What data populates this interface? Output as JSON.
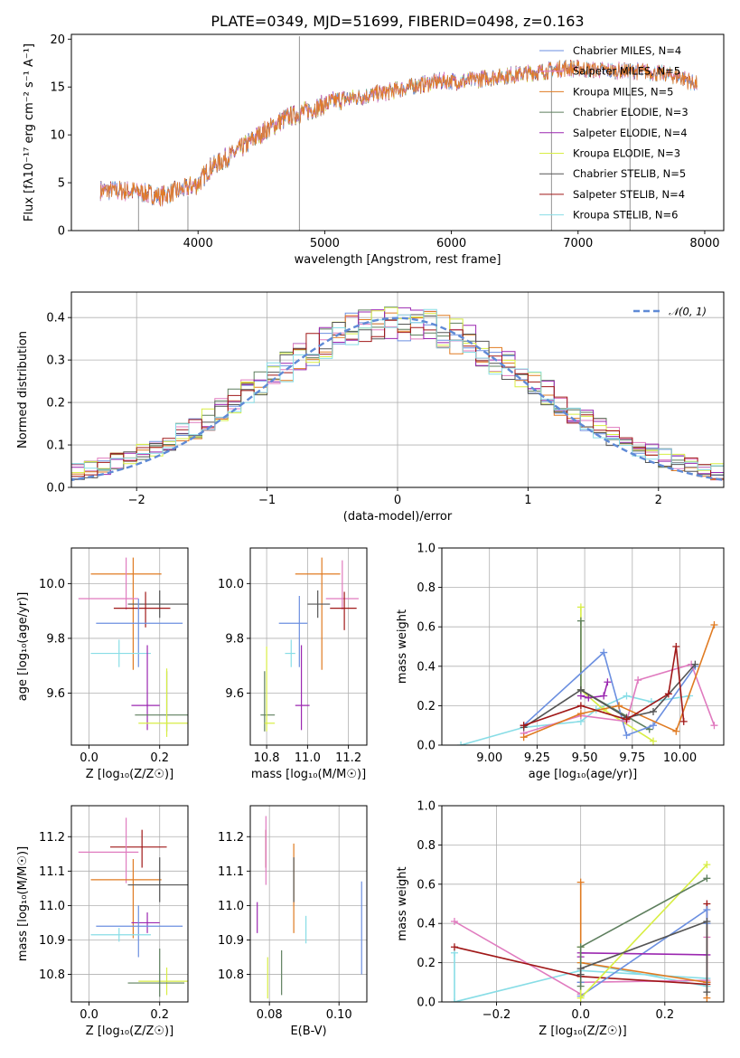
{
  "title": "PLATE=0349, MJD=51699, FIBERID=0498, z=0.163",
  "colors": {
    "Chabrier MILES": "#6b8fe0",
    "Salpeter MILES": "#e07bbf",
    "Kroupa MILES": "#e07b22",
    "Chabrier ELODIE": "#5e7f5e",
    "Salpeter ELODIE": "#9b27b0",
    "Kroupa ELODIE": "#d8ee44",
    "Chabrier STELIB": "#555555",
    "Salpeter STELIB": "#a01818",
    "Kroupa STELIB": "#88dde6"
  },
  "chart_data": [
    {
      "id": "spectrum",
      "type": "line",
      "xlabel": "wavelength [Angstrom, rest frame]",
      "ylabel": "Flux [fλ10⁻¹⁷ erg cm⁻² s⁻¹ A⁻¹]",
      "xlim": [
        3000,
        8150
      ],
      "ylim": [
        0,
        20.5
      ],
      "xticks": [
        4000,
        5000,
        6000,
        7000,
        8000
      ],
      "yticks": [
        0,
        5,
        10,
        15,
        20
      ],
      "grid": false,
      "legend_position": "right",
      "continuum": [
        [
          3230,
          4.2
        ],
        [
          3500,
          4.1
        ],
        [
          3700,
          3.6
        ],
        [
          3900,
          4.4
        ],
        [
          4000,
          4.9
        ],
        [
          4100,
          6.6
        ],
        [
          4300,
          8.2
        ],
        [
          4500,
          10.2
        ],
        [
          4700,
          11.8
        ],
        [
          4900,
          12.7
        ],
        [
          5100,
          13.6
        ],
        [
          5300,
          14.0
        ],
        [
          5500,
          14.5
        ],
        [
          5700,
          15.1
        ],
        [
          5900,
          15.6
        ],
        [
          6100,
          15.6
        ],
        [
          6300,
          16.0
        ],
        [
          6500,
          16.3
        ],
        [
          6700,
          16.6
        ],
        [
          6900,
          17.0
        ],
        [
          7100,
          16.8
        ],
        [
          7300,
          16.7
        ],
        [
          7450,
          16.7
        ],
        [
          7600,
          16.5
        ],
        [
          7700,
          16.3
        ],
        [
          7800,
          16.1
        ],
        [
          7900,
          15.5
        ],
        [
          7940,
          15.3
        ]
      ],
      "features": [
        {
          "x": 4800,
          "ymin": 0,
          "ymax": 20.3
        },
        {
          "x": 3530,
          "ymin": 0,
          "ymax": 3.6
        },
        {
          "x": 3920,
          "ymin": 0,
          "ymax": 3.6
        },
        {
          "x": 6790,
          "ymin": 0,
          "ymax": 17.2
        },
        {
          "x": 7410,
          "ymin": 0,
          "ymax": 16.5
        }
      ],
      "series": [
        {
          "name": "Chabrier MILES, N_SSP=4"
        },
        {
          "name": "Salpeter MILES, N_SSP=5"
        },
        {
          "name": "Kroupa MILES, N_SSP=5"
        },
        {
          "name": "Chabrier ELODIE, N_SSP=3"
        },
        {
          "name": "Salpeter ELODIE, N_SSP=4"
        },
        {
          "name": "Kroupa ELODIE, N_SSP=3"
        },
        {
          "name": "Chabrier STELIB, N_SSP=5"
        },
        {
          "name": "Salpeter STELIB, N_SSP=4"
        },
        {
          "name": "Kroupa STELIB, N_SSP=6"
        }
      ]
    },
    {
      "id": "residuals",
      "type": "bar",
      "xlabel": "(data-model)/error",
      "ylabel": "Normed distribution",
      "xlim": [
        -2.5,
        2.5
      ],
      "ylim": [
        0,
        0.46
      ],
      "xticks": [
        -2,
        -1,
        0,
        1,
        2
      ],
      "yticks": [
        0.0,
        0.1,
        0.2,
        0.3,
        0.4
      ],
      "grid": true,
      "legend_position": "top-right",
      "bin_width": 0.1,
      "normal_curve": {
        "label": "N(0,1)",
        "mean": 0,
        "sigma": 1
      },
      "histogram_models": [
        "Chabrier MILES",
        "Salpeter MILES",
        "Kroupa MILES",
        "Chabrier ELODIE",
        "Salpeter ELODIE",
        "Kroupa ELODIE",
        "Chabrier STELIB",
        "Salpeter STELIB",
        "Kroupa STELIB"
      ]
    },
    {
      "id": "age-vs-Z",
      "type": "scatter",
      "xlabel": "Z [log₁₀(Z/Z☉)]",
      "ylabel": "age  [log₁₀(age/yr)]",
      "xlim": [
        -0.05,
        0.28
      ],
      "ylim": [
        9.41,
        10.13
      ],
      "xticks": [
        0.0,
        0.2
      ],
      "yticks": [
        9.6,
        9.8,
        10.0
      ],
      "grid": true,
      "points": [
        {
          "model": "Kroupa MILES",
          "x": 0.125,
          "y": 10.035,
          "xerr": [
            0.12,
            0.08
          ],
          "yerr": [
            0.35,
            0.06
          ]
        },
        {
          "model": "Salpeter MILES",
          "x": 0.105,
          "y": 9.945,
          "xerr": [
            0.135,
            0.035
          ],
          "yerr": [
            0.04,
            0.15
          ]
        },
        {
          "model": "Chabrier STELIB",
          "x": 0.2,
          "y": 9.925,
          "xerr": [
            0.09,
            0.08
          ],
          "yerr": [
            0.05,
            0.05
          ]
        },
        {
          "model": "Salpeter STELIB",
          "x": 0.16,
          "y": 9.91,
          "xerr": [
            0.09,
            0.07
          ],
          "yerr": [
            0.07,
            0.06
          ]
        },
        {
          "model": "Chabrier MILES",
          "x": 0.14,
          "y": 9.855,
          "xerr": [
            0.12,
            0.125
          ],
          "yerr": [
            0.16,
            0.09
          ]
        },
        {
          "model": "Kroupa STELIB",
          "x": 0.085,
          "y": 9.745,
          "xerr": [
            0.08,
            0.09
          ],
          "yerr": [
            0.05,
            0.05
          ]
        },
        {
          "model": "Salpeter ELODIE",
          "x": 0.165,
          "y": 9.555,
          "xerr": [
            0.045,
            0.035
          ],
          "yerr": [
            0.09,
            0.22
          ]
        },
        {
          "model": "Chabrier ELODIE",
          "x": 0.22,
          "y": 9.52,
          "xerr": [
            0.09,
            0.07
          ],
          "yerr": [
            0.06,
            0.16
          ]
        },
        {
          "model": "Kroupa ELODIE",
          "x": 0.22,
          "y": 9.49,
          "xerr": [
            0.08,
            0.07
          ],
          "yerr": [
            0.05,
            0.2
          ]
        }
      ]
    },
    {
      "id": "age-vs-mass",
      "type": "scatter",
      "xlabel": "mass [log₁₀(M/M☉)]",
      "ylabel": "",
      "xlim": [
        10.72,
        11.29
      ],
      "ylim": [
        9.41,
        10.13
      ],
      "xticks": [
        10.8,
        11.0,
        11.2
      ],
      "yticks": [
        9.6,
        9.8,
        10.0
      ],
      "grid": true,
      "points": [
        {
          "model": "Kroupa MILES",
          "x": 11.07,
          "y": 10.035,
          "xerr": [
            0.13,
            0.09
          ],
          "yerr": [
            0.35,
            0.06
          ]
        },
        {
          "model": "Salpeter MILES",
          "x": 11.17,
          "y": 9.945,
          "xerr": [
            0.08,
            0.08
          ],
          "yerr": [
            0.04,
            0.14
          ]
        },
        {
          "model": "Chabrier STELIB",
          "x": 11.05,
          "y": 9.925,
          "xerr": [
            0.05,
            0.06
          ],
          "yerr": [
            0.05,
            0.05
          ]
        },
        {
          "model": "Salpeter STELIB",
          "x": 11.18,
          "y": 9.91,
          "xerr": [
            0.07,
            0.06
          ],
          "yerr": [
            0.08,
            0.06
          ]
        },
        {
          "model": "Chabrier MILES",
          "x": 10.96,
          "y": 9.855,
          "xerr": [
            0.1,
            0.04
          ],
          "yerr": [
            0.16,
            0.1
          ]
        },
        {
          "model": "Kroupa STELIB",
          "x": 10.92,
          "y": 9.745,
          "xerr": [
            0.03,
            0.02
          ],
          "yerr": [
            0.05,
            0.05
          ]
        },
        {
          "model": "Salpeter ELODIE",
          "x": 10.97,
          "y": 9.555,
          "xerr": [
            0.03,
            0.04
          ],
          "yerr": [
            0.09,
            0.22
          ]
        },
        {
          "model": "Chabrier ELODIE",
          "x": 10.79,
          "y": 9.52,
          "xerr": [
            0.02,
            0.05
          ],
          "yerr": [
            0.06,
            0.16
          ]
        },
        {
          "model": "Kroupa ELODIE",
          "x": 10.8,
          "y": 9.49,
          "xerr": [
            0.01,
            0.04
          ],
          "yerr": [
            0.03,
            0.28
          ]
        }
      ]
    },
    {
      "id": "weight-vs-age",
      "type": "line",
      "xlabel": "age  [log₁₀(age/yr)]",
      "ylabel": "mass weight",
      "xlim": [
        8.75,
        10.23
      ],
      "ylim": [
        0,
        1.0
      ],
      "xticks": [
        9.0,
        9.25,
        9.5,
        9.75,
        10.0
      ],
      "yticks": [
        0.0,
        0.2,
        0.4,
        0.6,
        0.8,
        1.0
      ],
      "grid": true,
      "series": [
        {
          "model": "Kroupa STELIB",
          "x": [
            8.85,
            9.18,
            9.48,
            9.56,
            9.72,
            9.85,
            10.05
          ],
          "y": [
            0.0,
            0.09,
            0.12,
            0.18,
            0.25,
            0.22,
            0.25
          ]
        },
        {
          "model": "Kroupa ELODIE",
          "x": [
            9.48,
            9.48,
            9.6,
            9.86
          ],
          "y": [
            0.7,
            0.28,
            0.18,
            0.02
          ]
        },
        {
          "model": "Chabrier ELODIE",
          "x": [
            9.48,
            9.48,
            9.84
          ],
          "y": [
            0.63,
            0.28,
            0.08
          ]
        },
        {
          "model": "Salpeter ELODIE",
          "x": [
            9.48,
            9.52,
            9.6,
            9.62
          ],
          "y": [
            0.25,
            0.24,
            0.25,
            0.32
          ]
        },
        {
          "model": "Chabrier MILES",
          "x": [
            9.18,
            9.6,
            9.72,
            9.86,
            10.08
          ],
          "y": [
            0.1,
            0.47,
            0.05,
            0.1,
            0.4
          ]
        },
        {
          "model": "Salpeter MILES",
          "x": [
            9.18,
            9.48,
            9.72,
            9.78,
            10.06,
            10.18
          ],
          "y": [
            0.06,
            0.15,
            0.12,
            0.33,
            0.41,
            0.1
          ]
        },
        {
          "model": "Kroupa MILES",
          "x": [
            9.18,
            9.48,
            9.68,
            9.98,
            10.18
          ],
          "y": [
            0.04,
            0.16,
            0.2,
            0.07,
            0.61
          ]
        },
        {
          "model": "Chabrier STELIB",
          "x": [
            9.18,
            9.48,
            9.72,
            9.86,
            10.08
          ],
          "y": [
            0.09,
            0.28,
            0.14,
            0.17,
            0.41
          ]
        },
        {
          "model": "Salpeter STELIB",
          "x": [
            9.18,
            9.48,
            9.72,
            9.94,
            9.98,
            10.02
          ],
          "y": [
            0.1,
            0.2,
            0.13,
            0.26,
            0.5,
            0.12
          ]
        }
      ]
    },
    {
      "id": "mass-vs-Z",
      "type": "scatter",
      "xlabel": "Z [log₁₀(Z/Z☉)]",
      "ylabel": "mass [log₁₀(M/M☉)]",
      "xlim": [
        -0.05,
        0.28
      ],
      "ylim": [
        10.72,
        11.29
      ],
      "xticks": [
        0.0,
        0.2
      ],
      "yticks": [
        10.8,
        10.9,
        11.0,
        11.1,
        11.2
      ],
      "grid": true,
      "points": [
        {
          "model": "Salpeter STELIB",
          "x": 0.15,
          "y": 11.17,
          "xerr": [
            0.09,
            0.07
          ],
          "yerr": [
            0.06,
            0.05
          ]
        },
        {
          "model": "Salpeter MILES",
          "x": 0.105,
          "y": 11.155,
          "xerr": [
            0.135,
            0.035
          ],
          "yerr": [
            0.09,
            0.1
          ]
        },
        {
          "model": "Kroupa MILES",
          "x": 0.125,
          "y": 11.075,
          "xerr": [
            0.12,
            0.08
          ],
          "yerr": [
            0.17,
            0.06
          ]
        },
        {
          "model": "Chabrier STELIB",
          "x": 0.2,
          "y": 11.06,
          "xerr": [
            0.09,
            0.08
          ],
          "yerr": [
            0.05,
            0.08
          ]
        },
        {
          "model": "Salpeter ELODIE",
          "x": 0.165,
          "y": 10.95,
          "xerr": [
            0.045,
            0.035
          ],
          "yerr": [
            0.03,
            0.03
          ]
        },
        {
          "model": "Chabrier MILES",
          "x": 0.14,
          "y": 10.94,
          "xerr": [
            0.12,
            0.125
          ],
          "yerr": [
            0.09,
            0.06
          ]
        },
        {
          "model": "Kroupa STELIB",
          "x": 0.085,
          "y": 10.915,
          "xerr": [
            0.08,
            0.09
          ],
          "yerr": [
            0.02,
            0.02
          ]
        },
        {
          "model": "Kroupa ELODIE",
          "x": 0.22,
          "y": 10.78,
          "xerr": [
            0.08,
            0.07
          ],
          "yerr": [
            0.04,
            0.04
          ]
        },
        {
          "model": "Chabrier ELODIE",
          "x": 0.2,
          "y": 10.775,
          "xerr": [
            0.09,
            0.07
          ],
          "yerr": [
            0.04,
            0.1
          ]
        }
      ]
    },
    {
      "id": "mass-vs-EBV",
      "type": "scatter",
      "xlabel": "E(B-V)",
      "ylabel": "",
      "xlim": [
        0.0745,
        0.108
      ],
      "ylim": [
        10.72,
        11.29
      ],
      "xticks": [
        0.08,
        0.1
      ],
      "yticks": [
        10.8,
        10.9,
        11.0,
        11.1,
        11.2
      ],
      "grid": true,
      "points": [
        {
          "model": "Salpeter STELIB",
          "x": 0.079,
          "y": 11.17,
          "yerr": [
            0.06,
            0.05
          ]
        },
        {
          "model": "Salpeter MILES",
          "x": 0.079,
          "y": 11.16,
          "yerr": [
            0.1,
            0.1
          ]
        },
        {
          "model": "Kroupa MILES",
          "x": 0.087,
          "y": 11.09,
          "yerr": [
            0.17,
            0.09
          ]
        },
        {
          "model": "Chabrier STELIB",
          "x": 0.087,
          "y": 11.06,
          "yerr": [
            0.05,
            0.08
          ]
        },
        {
          "model": "Salpeter ELODIE",
          "x": 0.0765,
          "y": 10.97,
          "yerr": [
            0.05,
            0.04
          ]
        },
        {
          "model": "Chabrier MILES",
          "x": 0.1065,
          "y": 10.94,
          "yerr": [
            0.14,
            0.13
          ]
        },
        {
          "model": "Kroupa STELIB",
          "x": 0.0905,
          "y": 10.93,
          "yerr": [
            0.04,
            0.04
          ]
        },
        {
          "model": "Kroupa ELODIE",
          "x": 0.0795,
          "y": 10.78,
          "yerr": [
            0.05,
            0.07
          ]
        },
        {
          "model": "Chabrier ELODIE",
          "x": 0.0835,
          "y": 10.8,
          "yerr": [
            0.06,
            0.07
          ]
        }
      ]
    },
    {
      "id": "weight-vs-Z",
      "type": "line",
      "xlabel": "Z [log₁₀(Z/Z☉)]",
      "ylabel": "mass weight",
      "xlim": [
        -0.33,
        0.34
      ],
      "ylim": [
        0,
        1.0
      ],
      "xticks": [
        -0.2,
        0.0,
        0.2
      ],
      "yticks": [
        0.0,
        0.2,
        0.4,
        0.6,
        0.8,
        1.0
      ],
      "grid": true,
      "series": [
        {
          "model": "Kroupa STELIB",
          "x": [
            -0.3,
            -0.3,
            0.0,
            0.3,
            0.3,
            0.0
          ],
          "y": [
            0.25,
            0.0,
            0.16,
            0.12,
            0.08,
            0.2
          ]
        },
        {
          "model": "Salpeter MILES",
          "x": [
            -0.3,
            0.0,
            0.0,
            0.3,
            0.3
          ],
          "y": [
            0.41,
            0.04,
            0.1,
            0.11,
            0.33
          ]
        },
        {
          "model": "Salpeter STELIB",
          "x": [
            -0.3,
            0.0,
            0.3,
            0.3,
            0.3
          ],
          "y": [
            0.28,
            0.13,
            0.09,
            0.5,
            0.1
          ]
        },
        {
          "model": "Kroupa MILES",
          "x": [
            0.0,
            0.0,
            0.3,
            0.3
          ],
          "y": [
            0.61,
            0.2,
            0.1,
            0.02
          ]
        },
        {
          "model": "Chabrier MILES",
          "x": [
            0.0,
            0.0,
            0.3,
            0.3
          ],
          "y": [
            0.1,
            0.03,
            0.47,
            0.4
          ]
        },
        {
          "model": "Salpeter ELODIE",
          "x": [
            0.0,
            0.0,
            0.3
          ],
          "y": [
            0.23,
            0.25,
            0.24
          ]
        },
        {
          "model": "Kroupa ELODIE",
          "x": [
            0.0,
            0.0,
            0.3
          ],
          "y": [
            0.28,
            0.02,
            0.7
          ]
        },
        {
          "model": "Chabrier ELODIE",
          "x": [
            0.0,
            0.0,
            0.3
          ],
          "y": [
            0.08,
            0.28,
            0.63
          ]
        },
        {
          "model": "Chabrier STELIB",
          "x": [
            0.0,
            0.0,
            0.3,
            0.3
          ],
          "y": [
            0.14,
            0.17,
            0.41,
            0.05
          ]
        }
      ]
    }
  ]
}
